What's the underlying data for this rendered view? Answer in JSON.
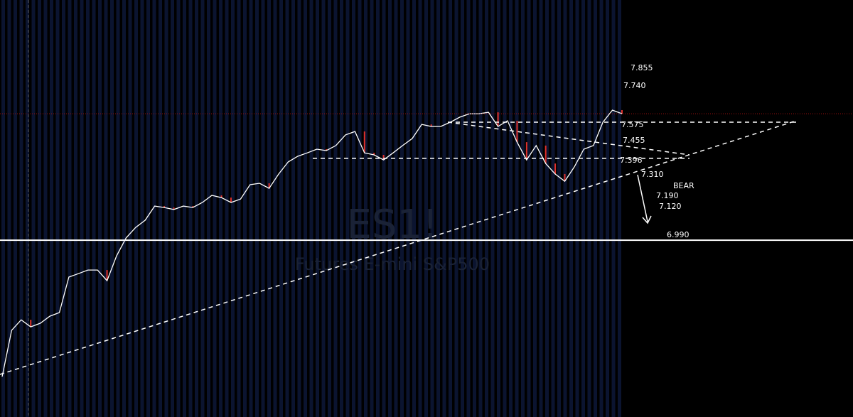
{
  "chart_data": {
    "type": "line",
    "symbol": "ES1!",
    "subtitle": "Futures E-mini S&P500",
    "signal": "BEAR",
    "ylim": [
      6.113,
      8.181
    ],
    "series": [
      {
        "color": "#ffffff",
        "values": [
          6.313,
          6.543,
          6.595,
          6.56,
          6.578,
          6.613,
          6.631,
          6.807,
          6.824,
          6.842,
          6.842,
          6.789,
          6.912,
          7.001,
          7.053,
          7.089,
          7.159,
          7.152,
          7.142,
          7.159,
          7.152,
          7.177,
          7.212,
          7.201,
          7.177,
          7.194,
          7.265,
          7.272,
          7.247,
          7.318,
          7.378,
          7.406,
          7.423,
          7.441,
          7.434,
          7.459,
          7.512,
          7.529,
          7.423,
          7.413,
          7.388,
          7.423,
          7.459,
          7.494,
          7.564,
          7.554,
          7.554,
          7.575,
          7.6,
          7.617,
          7.617,
          7.624,
          7.554,
          7.582,
          7.476,
          7.388,
          7.459,
          7.37,
          7.318,
          7.282,
          7.353,
          7.441,
          7.459,
          7.575,
          7.635,
          7.617
        ]
      }
    ],
    "levels": [
      {
        "value": 7.855,
        "label": "7.855"
      },
      {
        "value": 7.74,
        "label": "7.740"
      },
      {
        "value": 7.575,
        "label": "7.575"
      },
      {
        "value": 7.455,
        "label": "7.455"
      },
      {
        "value": 7.396,
        "label": "7.396"
      },
      {
        "value": 7.31,
        "label": "7.310"
      },
      {
        "value": 7.19,
        "label": "7.190"
      },
      {
        "value": 7.12,
        "label": "7.120"
      },
      {
        "value": 6.99,
        "label": "6.990"
      }
    ]
  }
}
